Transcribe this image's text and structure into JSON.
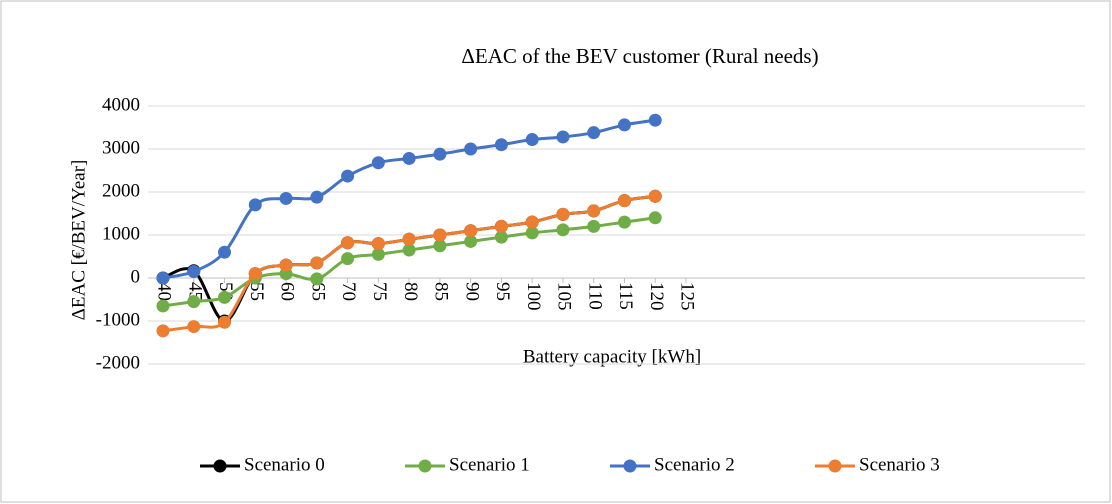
{
  "chart_data": {
    "type": "line",
    "title": "ΔEAC of the BEV customer (Rural needs)",
    "x_label": "Battery capacity [kWh]",
    "y_label": "ΔEAC [€/BEV/Year]",
    "x": [
      40,
      45,
      50,
      55,
      60,
      65,
      70,
      75,
      80,
      85,
      90,
      95,
      100,
      105,
      110,
      115,
      120
    ],
    "series": [
      {
        "name": "Scenario 0",
        "color": "#000000",
        "values": [
          0,
          170,
          -1000,
          100,
          300,
          350,
          820,
          800,
          900,
          1000,
          1100,
          1200,
          1300,
          1480,
          1560,
          1800,
          1900
        ]
      },
      {
        "name": "Scenario 1",
        "color": "#70ad47",
        "values": [
          -650,
          -550,
          -450,
          0,
          100,
          -20,
          450,
          550,
          650,
          750,
          850,
          950,
          1050,
          1120,
          1200,
          1300,
          1400
        ]
      },
      {
        "name": "Scenario 2",
        "color": "#4472c4",
        "values": [
          0,
          150,
          600,
          1700,
          1850,
          1880,
          2370,
          2680,
          2780,
          2880,
          3000,
          3100,
          3220,
          3280,
          3380,
          3560,
          3670
        ]
      },
      {
        "name": "Scenario 3",
        "color": "#ed7d31",
        "values": [
          -1230,
          -1130,
          -1030,
          100,
          300,
          350,
          820,
          800,
          900,
          1000,
          1100,
          1200,
          1300,
          1480,
          1560,
          1800,
          1900
        ]
      }
    ],
    "xlim": [
      40,
      125
    ],
    "xticks": [
      40,
      45,
      50,
      55,
      60,
      65,
      70,
      75,
      80,
      85,
      90,
      95,
      100,
      105,
      110,
      115,
      120,
      125
    ],
    "ylim": [
      -2000,
      4000
    ],
    "yticks": [
      -2000,
      -1000,
      0,
      1000,
      2000,
      3000,
      4000
    ],
    "grid": true,
    "smooth": true,
    "legend": "bottom"
  }
}
